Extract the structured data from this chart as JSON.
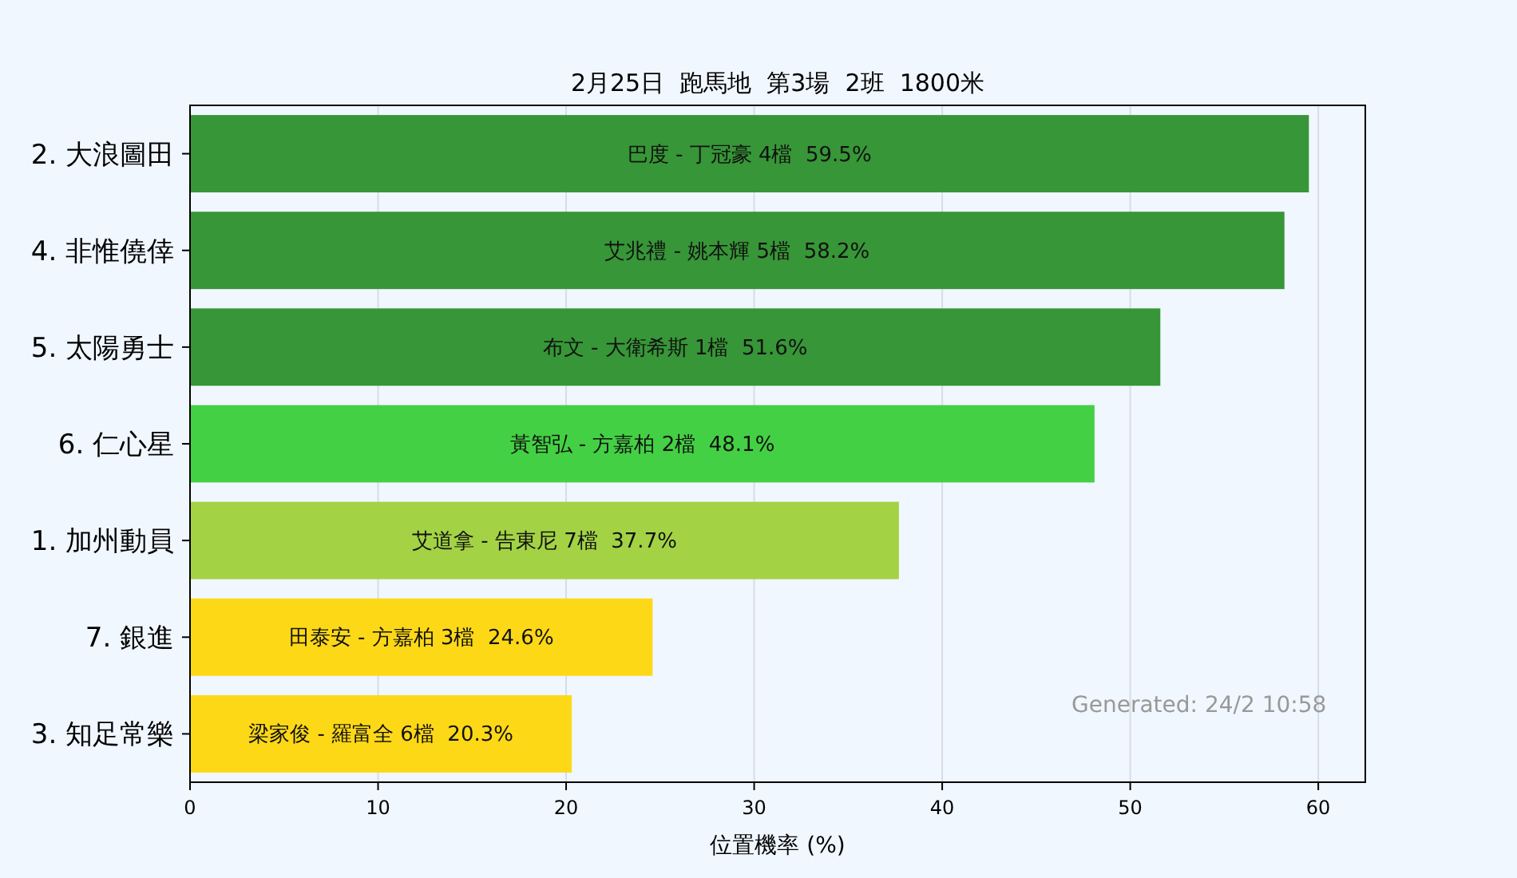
{
  "chart_data": {
    "type": "bar",
    "orientation": "horizontal",
    "title": "2月25日  跑馬地  第3場  2班  1800米",
    "xlabel": "位置機率 (%)",
    "categories": [
      "2. 大浪圖田",
      "4. 非惟僥倖",
      "5. 太陽勇士",
      "6. 仁心星",
      "1. 加州動員",
      "7. 銀進",
      "3. 知足常樂"
    ],
    "values": [
      59.5,
      58.2,
      51.6,
      48.1,
      37.7,
      24.6,
      20.3
    ],
    "colors": [
      "#379637",
      "#379637",
      "#379637",
      "#44d044",
      "#a3d345",
      "#fdd817",
      "#fdd817"
    ],
    "value_labels": [
      "巴度 - 丁冠豪 4檔  59.5%",
      "艾兆禮 - 姚本輝 5檔  58.2%",
      "布文 - 大衛希斯 1檔  51.6%",
      "黃智弘 - 方嘉柏 2檔  48.1%",
      "艾道拿 - 告東尼 7檔  37.7%",
      "田泰安 - 方嘉柏 3檔  24.6%",
      "梁家俊 - 羅富全 6檔  20.3%"
    ],
    "xlim": [
      0,
      62.5
    ],
    "xticks": [
      0,
      10,
      20,
      30,
      40,
      50,
      60
    ],
    "grid": "x",
    "annotations": [
      "Generated: 24/2 10:58"
    ]
  }
}
